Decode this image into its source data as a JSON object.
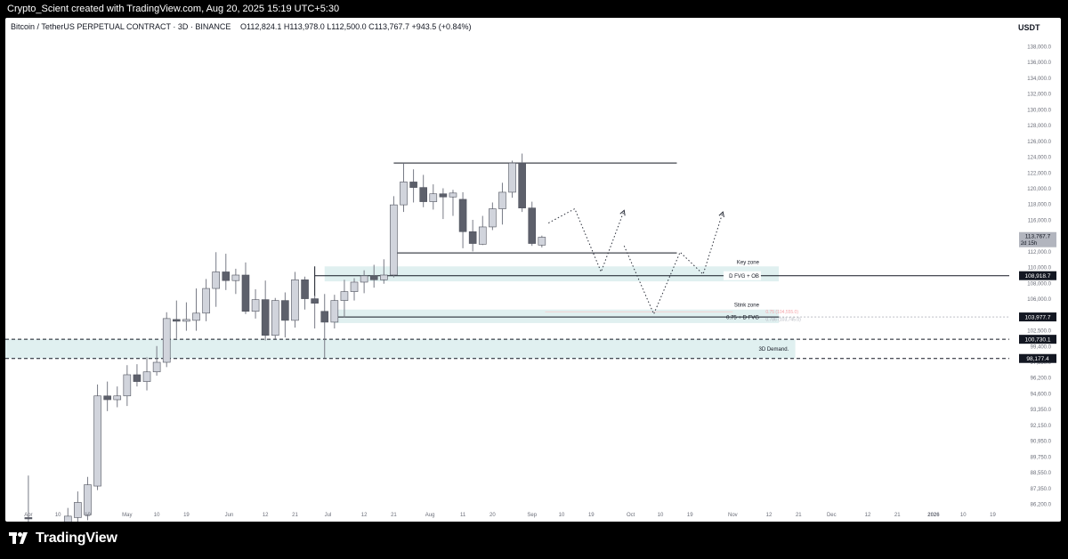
{
  "header": {
    "attribution": "Crypto_Scient created with TradingView.com, Aug 20, 2025 15:19 UTC+5:30"
  },
  "footer": {
    "brand": "TradingView",
    "logo_icon": "tradingview-logo-icon"
  },
  "colors": {
    "bull_candle": "#d1d4dc",
    "bear_candle": "#5d606b",
    "zone_fill": "#e0f0f0",
    "line": "#131722"
  },
  "chart_data": {
    "type": "candlestick",
    "title": "Bitcoin / TetherUS PERPETUAL CONTRACT · 3D · BINANCE",
    "ohlc_readout": {
      "open": "O112,824.1",
      "high": "H113,978.0",
      "low": "L112,500.0",
      "close": "C113,767.7",
      "change": "+943.5 (+0.84%)"
    },
    "currency": "USDT",
    "ylim": [
      85800,
      139800
    ],
    "y_ticks": [
      {
        "v": 138000,
        "l": "138,000.0"
      },
      {
        "v": 136000,
        "l": "136,000.0"
      },
      {
        "v": 134000,
        "l": "134,000.0"
      },
      {
        "v": 132000,
        "l": "132,000.0"
      },
      {
        "v": 130000,
        "l": "130,000.0"
      },
      {
        "v": 128000,
        "l": "128,000.0"
      },
      {
        "v": 126000,
        "l": "126,000.0"
      },
      {
        "v": 124000,
        "l": "124,000.0"
      },
      {
        "v": 122000,
        "l": "122,000.0"
      },
      {
        "v": 120000,
        "l": "120,000.0"
      },
      {
        "v": 118000,
        "l": "118,000.0"
      },
      {
        "v": 116000,
        "l": "116,000.0"
      },
      {
        "v": 114000,
        "l": "114,000.0"
      },
      {
        "v": 112000,
        "l": "112,000.0"
      },
      {
        "v": 110000,
        "l": "110,000.0"
      },
      {
        "v": 108000,
        "l": "108,000.0"
      },
      {
        "v": 106000,
        "l": "106,000.0"
      },
      {
        "v": 104250,
        "l": "104,250.0"
      },
      {
        "v": 102500,
        "l": "102,500.0"
      },
      {
        "v": 99400,
        "l": "99,400.0"
      },
      {
        "v": 97850,
        "l": "97,850.0"
      },
      {
        "v": 96200,
        "l": "96,200.0"
      },
      {
        "v": 94600,
        "l": "94,600.0"
      },
      {
        "v": 93350,
        "l": "93,350.0"
      },
      {
        "v": 92150,
        "l": "92,150.0"
      },
      {
        "v": 90950,
        "l": "90,950.0"
      },
      {
        "v": 89750,
        "l": "89,750.0"
      },
      {
        "v": 88550,
        "l": "88,550.0"
      },
      {
        "v": 87350,
        "l": "87,350.0"
      },
      {
        "v": 86200,
        "l": "86,200.0"
      }
    ],
    "price_labels": [
      {
        "v": 113767.7,
        "l": "113,767.7",
        "sub": "2d 15h",
        "style": "current"
      },
      {
        "v": 108918.7,
        "l": "108,918.7",
        "style": "dark"
      },
      {
        "v": 103977.7,
        "l": "103,977.7",
        "style": "dark"
      },
      {
        "v": 100730.1,
        "l": "100,730.1",
        "style": "dark"
      },
      {
        "v": 98177.4,
        "l": "98,177.4",
        "style": "dark"
      }
    ],
    "x_ticks": [
      {
        "d": "2025-04-01",
        "l": "Apr"
      },
      {
        "d": "2025-04-10",
        "l": "10"
      },
      {
        "d": "2025-04-19",
        "l": "19"
      },
      {
        "d": "2025-05-01",
        "l": "May"
      },
      {
        "d": "2025-05-10",
        "l": "10"
      },
      {
        "d": "2025-05-19",
        "l": "19"
      },
      {
        "d": "2025-06-01",
        "l": "Jun"
      },
      {
        "d": "2025-06-12",
        "l": "12"
      },
      {
        "d": "2025-06-21",
        "l": "21"
      },
      {
        "d": "2025-07-01",
        "l": "Jul"
      },
      {
        "d": "2025-07-12",
        "l": "12"
      },
      {
        "d": "2025-07-21",
        "l": "21"
      },
      {
        "d": "2025-08-01",
        "l": "Aug"
      },
      {
        "d": "2025-08-11",
        "l": "11"
      },
      {
        "d": "2025-08-20",
        "l": "20"
      },
      {
        "d": "2025-09-01",
        "l": "Sep"
      },
      {
        "d": "2025-09-10",
        "l": "10"
      },
      {
        "d": "2025-09-19",
        "l": "19"
      },
      {
        "d": "2025-10-01",
        "l": "Oct"
      },
      {
        "d": "2025-10-10",
        "l": "10"
      },
      {
        "d": "2025-10-19",
        "l": "19"
      },
      {
        "d": "2025-11-01",
        "l": "Nov"
      },
      {
        "d": "2025-11-12",
        "l": "12"
      },
      {
        "d": "2025-11-21",
        "l": "21"
      },
      {
        "d": "2025-12-01",
        "l": "Dec"
      },
      {
        "d": "2025-12-12",
        "l": "12"
      },
      {
        "d": "2025-12-21",
        "l": "21"
      },
      {
        "d": "2026-01-01",
        "l": "2026"
      },
      {
        "d": "2026-01-10",
        "l": "10"
      },
      {
        "d": "2026-01-19",
        "l": "19"
      }
    ],
    "candles": [
      {
        "d": "2025-04-01",
        "o": 85200,
        "h": 88300,
        "l": 84900,
        "c": 85100
      },
      {
        "d": "2025-04-13",
        "o": 84300,
        "h": 85900,
        "l": 84000,
        "c": 85300
      },
      {
        "d": "2025-04-16",
        "o": 85200,
        "h": 87100,
        "l": 84600,
        "c": 86300
      },
      {
        "d": "2025-04-19",
        "o": 85400,
        "h": 88200,
        "l": 85000,
        "c": 87600
      },
      {
        "d": "2025-04-22",
        "o": 87500,
        "h": 95500,
        "l": 87200,
        "c": 94400
      },
      {
        "d": "2025-04-25",
        "o": 94400,
        "h": 95800,
        "l": 93200,
        "c": 94100
      },
      {
        "d": "2025-04-28",
        "o": 94100,
        "h": 95300,
        "l": 93500,
        "c": 94400
      },
      {
        "d": "2025-05-01",
        "o": 94400,
        "h": 97500,
        "l": 93600,
        "c": 96500
      },
      {
        "d": "2025-05-04",
        "o": 96500,
        "h": 97600,
        "l": 95300,
        "c": 95800
      },
      {
        "d": "2025-05-07",
        "o": 95800,
        "h": 98300,
        "l": 94900,
        "c": 96800
      },
      {
        "d": "2025-05-10",
        "o": 96800,
        "h": 99400,
        "l": 96400,
        "c": 97800
      },
      {
        "d": "2025-05-13",
        "o": 97800,
        "h": 104500,
        "l": 97300,
        "c": 103800
      },
      {
        "d": "2025-05-16",
        "o": 103700,
        "h": 105800,
        "l": 100900,
        "c": 103500
      },
      {
        "d": "2025-05-19",
        "o": 103500,
        "h": 105600,
        "l": 102400,
        "c": 103700
      },
      {
        "d": "2025-05-22",
        "o": 103600,
        "h": 107300,
        "l": 102400,
        "c": 104400
      },
      {
        "d": "2025-05-25",
        "o": 104400,
        "h": 108500,
        "l": 103500,
        "c": 107300
      },
      {
        "d": "2025-05-28",
        "o": 107300,
        "h": 111900,
        "l": 105100,
        "c": 109400
      },
      {
        "d": "2025-05-31",
        "o": 109400,
        "h": 111700,
        "l": 107100,
        "c": 108300
      },
      {
        "d": "2025-06-03",
        "o": 108300,
        "h": 109800,
        "l": 106600,
        "c": 109000
      },
      {
        "d": "2025-06-06",
        "o": 109000,
        "h": 110600,
        "l": 104300,
        "c": 104600
      },
      {
        "d": "2025-06-09",
        "o": 104600,
        "h": 107200,
        "l": 103800,
        "c": 105900
      },
      {
        "d": "2025-06-12",
        "o": 105900,
        "h": 108300,
        "l": 100500,
        "c": 101500
      },
      {
        "d": "2025-06-15",
        "o": 101500,
        "h": 106100,
        "l": 100800,
        "c": 105800
      },
      {
        "d": "2025-06-18",
        "o": 105800,
        "h": 106800,
        "l": 101100,
        "c": 103600
      },
      {
        "d": "2025-06-21",
        "o": 103600,
        "h": 109400,
        "l": 102800,
        "c": 108400
      },
      {
        "d": "2025-06-24",
        "o": 108400,
        "h": 108800,
        "l": 104800,
        "c": 106000
      },
      {
        "d": "2025-06-27",
        "o": 106000,
        "h": 106400,
        "l": 102700,
        "c": 105500
      },
      {
        "d": "2025-06-30",
        "o": 104600,
        "h": 106600,
        "l": 98200,
        "c": 103400
      },
      {
        "d": "2025-07-03",
        "o": 103400,
        "h": 106500,
        "l": 102700,
        "c": 105800
      },
      {
        "d": "2025-07-06",
        "o": 105800,
        "h": 108400,
        "l": 103900,
        "c": 106900
      },
      {
        "d": "2025-07-09",
        "o": 106900,
        "h": 108600,
        "l": 105800,
        "c": 108100
      },
      {
        "d": "2025-07-12",
        "o": 108100,
        "h": 109600,
        "l": 106700,
        "c": 108900
      },
      {
        "d": "2025-07-15",
        "o": 108900,
        "h": 110300,
        "l": 107400,
        "c": 108400
      },
      {
        "d": "2025-07-18",
        "o": 108400,
        "h": 111000,
        "l": 107900,
        "c": 109000
      },
      {
        "d": "2025-07-21",
        "o": 109000,
        "h": 119000,
        "l": 108700,
        "c": 117900
      },
      {
        "d": "2025-07-24",
        "o": 117900,
        "h": 123200,
        "l": 117000,
        "c": 120800
      },
      {
        "d": "2025-07-27",
        "o": 120800,
        "h": 122400,
        "l": 118200,
        "c": 120100
      },
      {
        "d": "2025-07-30",
        "o": 120100,
        "h": 121700,
        "l": 117600,
        "c": 118300
      },
      {
        "d": "2025-08-02",
        "o": 118300,
        "h": 120500,
        "l": 117300,
        "c": 119300
      },
      {
        "d": "2025-08-05",
        "o": 119300,
        "h": 120000,
        "l": 116100,
        "c": 118900
      },
      {
        "d": "2025-08-08",
        "o": 118900,
        "h": 119800,
        "l": 116500,
        "c": 119400
      },
      {
        "d": "2025-08-11",
        "o": 118600,
        "h": 119500,
        "l": 112400,
        "c": 114500
      },
      {
        "d": "2025-08-14",
        "o": 114500,
        "h": 116000,
        "l": 112000,
        "c": 113000
      },
      {
        "d": "2025-08-17",
        "o": 112900,
        "h": 116500,
        "l": 112800,
        "c": 115100
      },
      {
        "d": "2025-08-20",
        "o": 115100,
        "h": 118200,
        "l": 114700,
        "c": 117400
      },
      {
        "d": "2025-08-23",
        "o": 117400,
        "h": 120700,
        "l": 115400,
        "c": 119500
      },
      {
        "d": "2025-08-26",
        "o": 119500,
        "h": 123500,
        "l": 118800,
        "c": 123200
      },
      {
        "d": "2025-08-29",
        "o": 123200,
        "h": 124400,
        "l": 117000,
        "c": 117500
      },
      {
        "d": "2025-09-01",
        "o": 117500,
        "h": 118300,
        "l": 112700,
        "c": 113000
      },
      {
        "d": "2025-09-04",
        "o": 112800,
        "h": 114000,
        "l": 112500,
        "c": 113800
      }
    ],
    "range_lines": [
      {
        "d1": "2025-07-21",
        "d2": "2025-10-15",
        "v": 123200
      },
      {
        "d1": "2025-07-21",
        "d2": "2025-10-15",
        "v": 111800
      }
    ],
    "zones": [
      {
        "name": "key-zone",
        "d1": "2025-06-30",
        "d2": "2025-11-15",
        "top": 110100,
        "bottom": 108200,
        "label": "Key zone",
        "line_label": "D FVG + OB",
        "line_v": 108918.7
      },
      {
        "name": "stink-zone",
        "d1": "2025-07-03",
        "d2": "2025-11-15",
        "top": 104800,
        "bottom": 103300,
        "label": "Stink zone",
        "line_label": "0.75 + D FVG",
        "line_v": 103977.7,
        "fib_text_1": "0.75 (104,555.0)",
        "fib_text_2": "0.786 (103,745.0)"
      },
      {
        "name": "demand-zone",
        "d1": "2025-03-25",
        "d2": "2025-11-20",
        "top": 100730.1,
        "bottom": 98177.4,
        "label": "3D Demand."
      }
    ],
    "projection_paths": [
      [
        [
          "2025-09-06",
          115600
        ],
        [
          "2025-09-14",
          117400
        ],
        [
          "2025-09-22",
          109400
        ],
        [
          "2025-09-29",
          117200
        ]
      ],
      [
        [
          "2025-09-29",
          112700
        ],
        [
          "2025-10-08",
          104300
        ],
        [
          "2025-10-16",
          111900
        ],
        [
          "2025-10-23",
          109100
        ],
        [
          "2025-10-29",
          117000
        ]
      ]
    ]
  }
}
